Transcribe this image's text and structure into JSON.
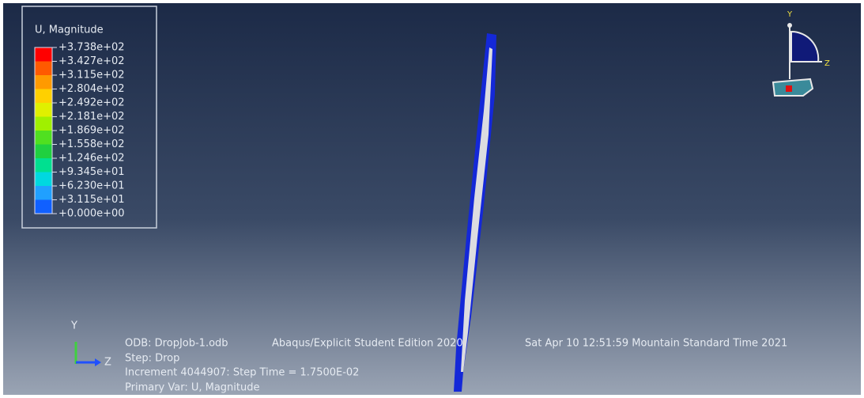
{
  "legend": {
    "title": "U, Magnitude",
    "labels": [
      "+3.738e+02",
      "+3.427e+02",
      "+3.115e+02",
      "+2.804e+02",
      "+2.492e+02",
      "+2.181e+02",
      "+1.869e+02",
      "+1.558e+02",
      "+1.246e+02",
      "+9.345e+01",
      "+6.230e+01",
      "+3.115e+01",
      "+0.000e+00"
    ],
    "colors": [
      "#ff0000",
      "#ff5a00",
      "#ff9a00",
      "#ffd000",
      "#e0f000",
      "#a0f000",
      "#50e020",
      "#20d040",
      "#00e090",
      "#00d8e0",
      "#20a0ff",
      "#1060ff",
      "#0000e8"
    ]
  },
  "triad": {
    "y": "Y",
    "z": "Z"
  },
  "viewTriad": {
    "y": "Y",
    "z": "Z"
  },
  "info": {
    "odb": "ODB: DropJob-1.odb",
    "product": "Abaqus/Explicit Student Edition 2020",
    "date": "Sat Apr 10 12:51:59 Mountain Standard Time 2021",
    "step": "Step: Drop",
    "increment": "Increment   4044907: Step Time =   1.7500E-02",
    "primary": "Primary Var: U, Magnitude"
  }
}
